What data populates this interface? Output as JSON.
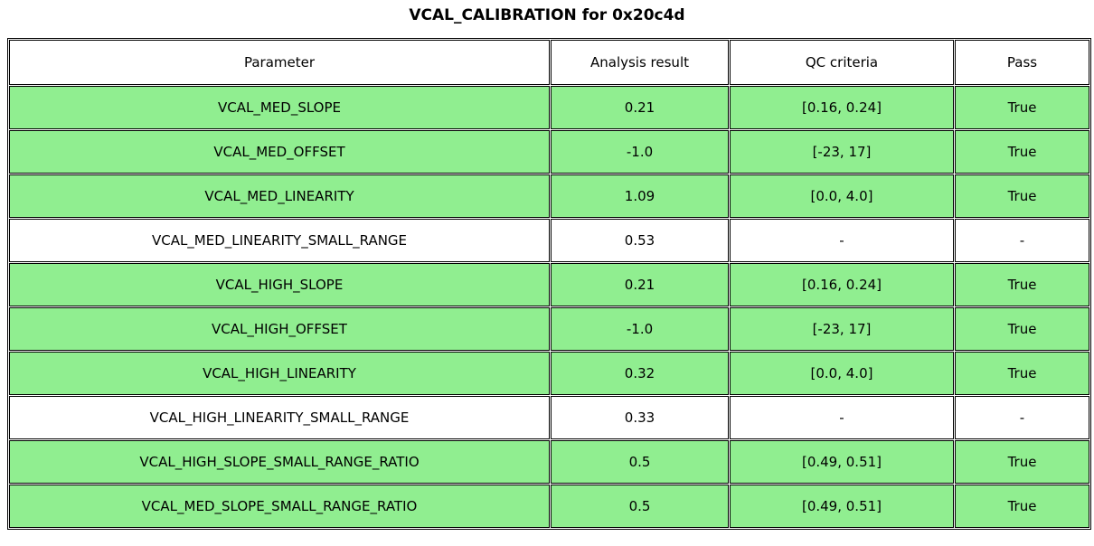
{
  "chart_data": {
    "type": "table",
    "title": "VCAL_CALIBRATION for 0x20c4d",
    "columns": [
      "Parameter",
      "Analysis result",
      "QC criteria",
      "Pass"
    ],
    "rows": [
      [
        "VCAL_MED_SLOPE",
        "0.21",
        "[0.16, 0.24]",
        "True"
      ],
      [
        "VCAL_MED_OFFSET",
        "-1.0",
        "[-23, 17]",
        "True"
      ],
      [
        "VCAL_MED_LINEARITY",
        "1.09",
        "[0.0, 4.0]",
        "True"
      ],
      [
        "VCAL_MED_LINEARITY_SMALL_RANGE",
        "0.53",
        "-",
        "-"
      ],
      [
        "VCAL_HIGH_SLOPE",
        "0.21",
        "[0.16, 0.24]",
        "True"
      ],
      [
        "VCAL_HIGH_OFFSET",
        "-1.0",
        "[-23, 17]",
        "True"
      ],
      [
        "VCAL_HIGH_LINEARITY",
        "0.32",
        "[0.0, 4.0]",
        "True"
      ],
      [
        "VCAL_HIGH_LINEARITY_SMALL_RANGE",
        "0.33",
        "-",
        "-"
      ],
      [
        "VCAL_HIGH_SLOPE_SMALL_RANGE_RATIO",
        "0.5",
        "[0.49, 0.51]",
        "True"
      ],
      [
        "VCAL_MED_SLOPE_SMALL_RANGE_RATIO",
        "0.5",
        "[0.49, 0.51]",
        "True"
      ]
    ],
    "row_highlight": [
      true,
      true,
      true,
      false,
      true,
      true,
      true,
      false,
      true,
      true
    ],
    "legend_position": "none",
    "grid": true
  },
  "colors": {
    "pass_row_bg": "#90EE90",
    "default_row_bg": "#FFFFFF",
    "border": "#000000",
    "text": "#000000"
  }
}
